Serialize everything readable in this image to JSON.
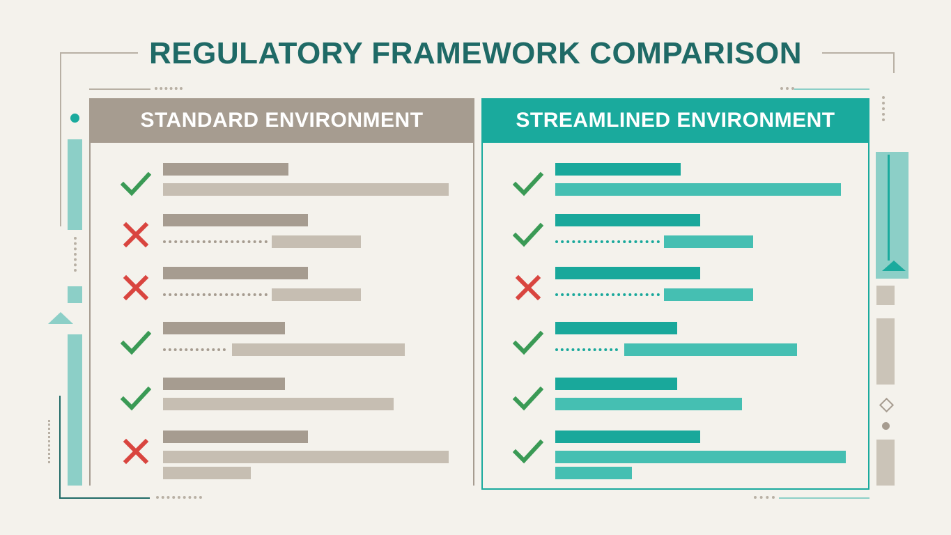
{
  "title": "REGULATORY FRAMEWORK COMPARISON",
  "colors": {
    "background": "#f4f2ec",
    "title": "#1f6a66",
    "standard_header": "#a69c90",
    "standard_bar_dark": "#a69c90",
    "standard_bar_light": "#c6beb2",
    "streamlined_header": "#1aaa9d",
    "streamlined_bar_dark": "#19a89b",
    "streamlined_bar_light": "#45bfb2",
    "check": "#3a9a55",
    "cross": "#d9453f"
  },
  "panels": [
    {
      "id": "standard",
      "header": "STANDARD ENVIRONMENT",
      "rows": [
        {
          "status": "check",
          "style": "solid"
        },
        {
          "status": "cross",
          "style": "dotted"
        },
        {
          "status": "cross",
          "style": "dotted"
        },
        {
          "status": "check",
          "style": "dotted"
        },
        {
          "status": "check",
          "style": "solid"
        },
        {
          "status": "cross",
          "style": "solid-double"
        }
      ]
    },
    {
      "id": "streamlined",
      "header": "STREAMLINED ENVIRONMENT",
      "rows": [
        {
          "status": "check",
          "style": "solid"
        },
        {
          "status": "check",
          "style": "dotted"
        },
        {
          "status": "cross",
          "style": "dotted"
        },
        {
          "status": "check",
          "style": "dotted"
        },
        {
          "status": "check",
          "style": "solid"
        },
        {
          "status": "check",
          "style": "solid-double"
        }
      ]
    }
  ]
}
